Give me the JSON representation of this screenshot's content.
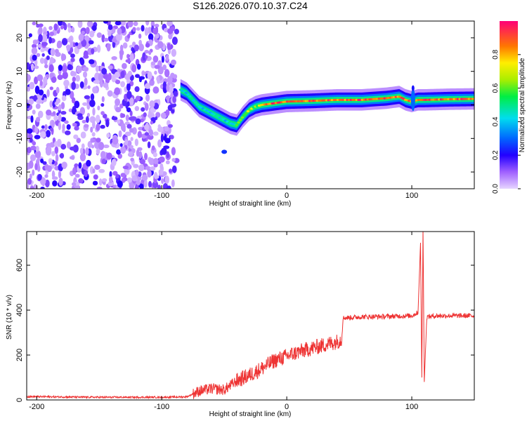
{
  "title": "S126.2026.070.10.37.C24",
  "chart_data": [
    {
      "type": "heatmap",
      "panel": "top",
      "xlabel": "Height of straight line (km)",
      "ylabel": "Frequency (Hz)",
      "xlim": [
        -208,
        150
      ],
      "ylim": [
        -25,
        25
      ],
      "xticks": [
        -200,
        -100,
        0,
        100
      ],
      "yticks": [
        -20,
        -10,
        0,
        10,
        20
      ],
      "colorbar": {
        "label": "Normalized spectral amplitude",
        "range": [
          0,
          1
        ],
        "ticks": [
          "0.0",
          "0.2",
          "0.4",
          "0.6",
          "0.8"
        ]
      },
      "ridge": {
        "description": "dominant frequency vs height",
        "x": [
          -85,
          -80,
          -75,
          -70,
          -65,
          -60,
          -55,
          -50,
          -45,
          -40,
          -35,
          -30,
          -25,
          -20,
          -10,
          0,
          20,
          40,
          60,
          80,
          90,
          95,
          100,
          105,
          110,
          130,
          150
        ],
        "y": [
          4.5,
          3.5,
          1.5,
          -0.5,
          -1.5,
          -2.5,
          -3.5,
          -4.5,
          -5.5,
          -6,
          -3.5,
          -1.5,
          -0.5,
          0,
          0.5,
          1,
          1.2,
          1.5,
          1.5,
          2,
          2.5,
          1.5,
          1,
          1.5,
          1.5,
          1.7,
          1.8
        ],
        "noise_region_x": [
          -208,
          -88
        ]
      }
    },
    {
      "type": "line",
      "panel": "bottom",
      "xlabel": "Height of straight line (km)",
      "ylabel": "SNR (10 * v/v)",
      "xlim": [
        -208,
        150
      ],
      "ylim": [
        0,
        750
      ],
      "xticks": [
        -200,
        -100,
        0,
        100
      ],
      "yticks": [
        0,
        200,
        400,
        600
      ],
      "series": [
        {
          "name": "SNR",
          "color": "#ee3333",
          "x": [
            -208,
            -150,
            -100,
            -80,
            -70,
            -60,
            -50,
            -40,
            -30,
            -20,
            -10,
            0,
            10,
            20,
            30,
            40,
            44,
            45,
            60,
            80,
            100,
            105,
            107,
            108,
            109,
            110,
            112,
            120,
            150
          ],
          "y": [
            15,
            12,
            12,
            14,
            40,
            50,
            45,
            85,
            110,
            140,
            175,
            195,
            215,
            230,
            245,
            260,
            270,
            365,
            370,
            372,
            375,
            390,
            700,
            100,
            760,
            80,
            370,
            375,
            375
          ]
        }
      ]
    }
  ]
}
